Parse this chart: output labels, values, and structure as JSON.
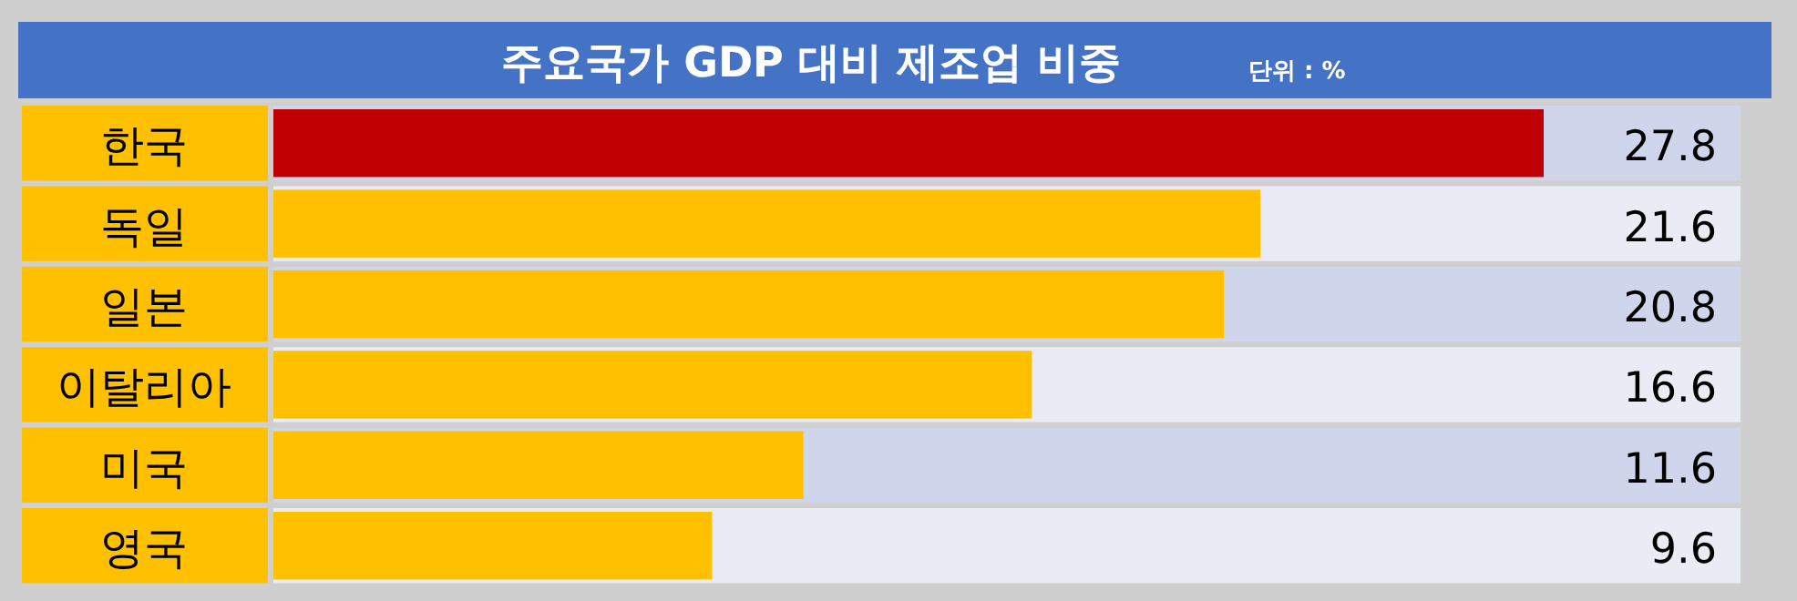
{
  "chart_data": {
    "type": "bar",
    "orientation": "horizontal",
    "title": "주요국가 GDP 대비 제조업 비중",
    "subtitle": "단위 : %",
    "categories": [
      "한국",
      "독일",
      "일본",
      "이탈리아",
      "미국",
      "영국"
    ],
    "values": [
      27.8,
      21.6,
      20.8,
      16.6,
      11.6,
      9.6
    ],
    "colors": [
      "#c00000",
      "#ffc000",
      "#ffc000",
      "#ffc000",
      "#ffc000",
      "#ffc000"
    ],
    "data_labels": true
  }
}
